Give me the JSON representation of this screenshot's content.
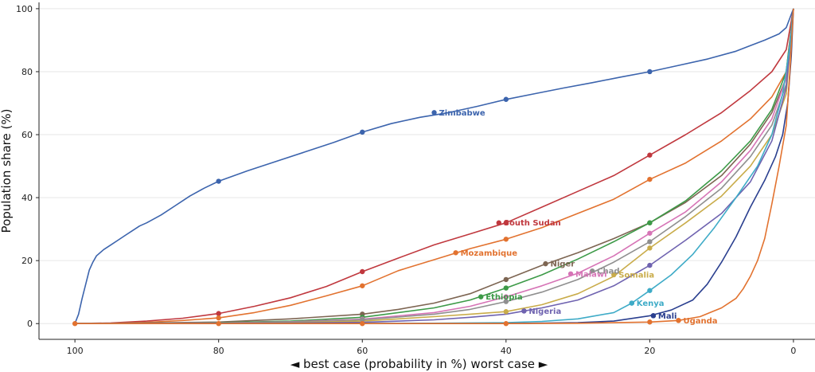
{
  "chart_data": {
    "type": "line",
    "xlabel": "◄ best case (probability in %) worst case ►",
    "ylabel": "Population share (%)",
    "xlim": [
      105,
      -3
    ],
    "ylim": [
      -5,
      102
    ],
    "xticks": [
      100,
      80,
      60,
      40,
      20,
      0
    ],
    "yticks": [
      0,
      20,
      40,
      60,
      80,
      100
    ],
    "grid": "horizontal",
    "series": [
      {
        "name": "Zimbabwe",
        "color": "#3c64ad",
        "label_point": [
          50,
          67
        ],
        "x": [
          100,
          99.5,
          99,
          98.5,
          98,
          97.5,
          97,
          96,
          95,
          94,
          93,
          92,
          91,
          90,
          88,
          86,
          84,
          82,
          80,
          76,
          72,
          68,
          64,
          60,
          56,
          52,
          48,
          44,
          40,
          36,
          32,
          28,
          24,
          20,
          16,
          12,
          8,
          6,
          4,
          2,
          1,
          0
        ],
        "y": [
          0,
          3,
          8,
          12.5,
          17,
          19.5,
          21.5,
          23.5,
          25,
          26.5,
          28,
          29.5,
          31,
          32,
          34.5,
          37.5,
          40.5,
          43,
          45.2,
          48.5,
          51.5,
          54.5,
          57.5,
          60.8,
          63.5,
          65.5,
          67,
          69,
          71.2,
          73,
          74.8,
          76.5,
          78.3,
          80,
          82,
          84,
          86.5,
          88.3,
          90,
          92,
          94,
          100
        ],
        "markers": [
          [
            80,
            45.2
          ],
          [
            60,
            60.8
          ],
          [
            40,
            71.2
          ],
          [
            20,
            80
          ]
        ]
      },
      {
        "name": "South Sudan",
        "color": "#c0383e",
        "label_point": [
          41,
          32
        ],
        "x": [
          100,
          95,
          90,
          85,
          80,
          75,
          70,
          65,
          60,
          55,
          50,
          45,
          40,
          35,
          30,
          25,
          20,
          15,
          10,
          6,
          3,
          1,
          0
        ],
        "y": [
          0,
          0.2,
          0.8,
          1.7,
          3.2,
          5.5,
          8.2,
          11.8,
          16.5,
          20.8,
          25,
          28.5,
          32,
          37,
          42,
          47,
          53.5,
          60,
          67,
          74,
          80,
          87,
          100
        ],
        "markers": [
          [
            80,
            3.2
          ],
          [
            60,
            16.5
          ],
          [
            40,
            32
          ],
          [
            20,
            53.5
          ]
        ]
      },
      {
        "name": "Mozambique",
        "color": "#e2722f",
        "label_point": [
          47,
          22.5
        ],
        "x": [
          100,
          95,
          90,
          85,
          80,
          75,
          70,
          65,
          60,
          55,
          50,
          45,
          40,
          35,
          30,
          25,
          20,
          15,
          10,
          6,
          3,
          1,
          0
        ],
        "y": [
          0,
          0.1,
          0.4,
          1,
          1.8,
          3.5,
          5.8,
          8.8,
          12,
          16.8,
          20.3,
          23.8,
          26.8,
          30.5,
          35,
          39.5,
          45.8,
          51,
          58,
          65,
          72,
          80,
          100
        ],
        "markers": [
          [
            80,
            1.8
          ],
          [
            60,
            12
          ],
          [
            40,
            26.8
          ],
          [
            20,
            45.8
          ]
        ]
      },
      {
        "name": "Niger",
        "color": "#7d6552",
        "label_point": [
          34.5,
          19
        ],
        "x": [
          100,
          90,
          80,
          70,
          60,
          55,
          50,
          45,
          40,
          35,
          30,
          25,
          20,
          15,
          10,
          6,
          3,
          1,
          0
        ],
        "y": [
          0,
          0.2,
          0.5,
          1.5,
          3,
          4.5,
          6.5,
          9.5,
          14,
          18.5,
          22.5,
          27,
          32,
          38.5,
          47,
          57,
          67,
          78,
          100
        ],
        "markers": [
          [
            60,
            3
          ],
          [
            40,
            14
          ],
          [
            20,
            32
          ]
        ]
      },
      {
        "name": "Ethiopia",
        "color": "#3c9a47",
        "label_point": [
          43.5,
          8.5
        ],
        "x": [
          100,
          90,
          80,
          70,
          60,
          50,
          45,
          40,
          35,
          30,
          25,
          20,
          15,
          10,
          6,
          3,
          1,
          0
        ],
        "y": [
          0,
          0.1,
          0.3,
          0.8,
          2,
          5,
          7.5,
          11.3,
          15.5,
          20.5,
          26,
          32,
          39,
          48.5,
          58,
          68,
          80,
          100
        ],
        "markers": [
          [
            60,
            2
          ],
          [
            40,
            11.3
          ],
          [
            20,
            32
          ]
        ]
      },
      {
        "name": "Malawi",
        "color": "#d674b6",
        "label_point": [
          31,
          15.8
        ],
        "x": [
          100,
          90,
          80,
          70,
          60,
          50,
          45,
          40,
          35,
          30,
          25,
          20,
          15,
          10,
          6,
          3,
          1,
          0
        ],
        "y": [
          0,
          0.1,
          0.2,
          0.6,
          1.4,
          3.5,
          5.5,
          8.5,
          12,
          16,
          21.5,
          28.7,
          35.5,
          45,
          55,
          65,
          78,
          100
        ],
        "markers": [
          [
            60,
            1.4
          ],
          [
            40,
            8.5
          ],
          [
            20,
            28.7
          ]
        ]
      },
      {
        "name": "Chad",
        "color": "#8f8f8f",
        "label_point": [
          28,
          16.7
        ],
        "x": [
          100,
          90,
          80,
          70,
          60,
          50,
          45,
          40,
          35,
          30,
          25,
          20,
          15,
          10,
          6,
          3,
          1,
          0
        ],
        "y": [
          0,
          0.1,
          0.2,
          0.5,
          1.2,
          3,
          4.5,
          7,
          10,
          14,
          19.5,
          26,
          34,
          43,
          53,
          63,
          76,
          100
        ],
        "markers": [
          [
            60,
            1.2
          ],
          [
            40,
            7
          ],
          [
            20,
            26
          ]
        ]
      },
      {
        "name": "Somalia",
        "color": "#c9ac4a",
        "label_point": [
          25,
          15.5
        ],
        "x": [
          100,
          90,
          80,
          70,
          60,
          50,
          45,
          40,
          35,
          30,
          25,
          20,
          15,
          10,
          6,
          3,
          1,
          0
        ],
        "y": [
          0,
          0,
          0.1,
          0.3,
          0.8,
          2.2,
          3,
          3.8,
          6,
          9.5,
          15,
          24,
          32,
          40.5,
          50,
          60,
          73,
          100
        ],
        "markers": [
          [
            40,
            3.8
          ],
          [
            20,
            24
          ]
        ]
      },
      {
        "name": "Nigeria",
        "color": "#6f63b0",
        "label_point": [
          37.5,
          4
        ],
        "x": [
          100,
          90,
          80,
          70,
          60,
          50,
          45,
          40,
          37.5,
          35,
          30,
          25,
          20,
          15,
          10,
          6,
          3,
          1,
          0
        ],
        "y": [
          0,
          0,
          0.1,
          0.2,
          0.4,
          1.2,
          2,
          3,
          4,
          5,
          7.5,
          12,
          18.5,
          26.5,
          35,
          45,
          58,
          75,
          100
        ],
        "markers": [
          [
            37.5,
            4
          ],
          [
            20,
            18.5
          ]
        ]
      },
      {
        "name": "Kenya",
        "color": "#3eabc7",
        "label_point": [
          22.5,
          6.5
        ],
        "x": [
          100,
          80,
          60,
          50,
          40,
          35,
          30,
          25,
          22.5,
          20,
          17,
          14,
          11,
          8,
          5,
          3,
          1.5,
          0.5,
          0
        ],
        "y": [
          0,
          0,
          0,
          0.1,
          0.3,
          0.7,
          1.5,
          3.5,
          6.5,
          10.5,
          15.5,
          22,
          30.5,
          40,
          50,
          60,
          73,
          88,
          100
        ],
        "markers": [
          [
            22.5,
            6.5
          ],
          [
            20,
            10.5
          ]
        ]
      },
      {
        "name": "Mali",
        "color": "#2a3f8f",
        "label_point": [
          19.5,
          2.5
        ],
        "x": [
          100,
          80,
          60,
          40,
          30,
          25,
          20,
          17,
          14,
          12,
          10,
          8,
          6,
          4,
          2.5,
          1.5,
          0.8,
          0.3,
          0
        ],
        "y": [
          0,
          0,
          0,
          0,
          0.3,
          0.8,
          2.5,
          4.3,
          7.5,
          12.5,
          19.5,
          27.5,
          37,
          45.5,
          53,
          60,
          70,
          85,
          100
        ],
        "markers": [
          [
            19.5,
            2.5
          ]
        ]
      },
      {
        "name": "Uganda",
        "color": "#e2722f",
        "label_point": [
          16,
          1
        ],
        "x": [
          100,
          80,
          60,
          40,
          30,
          20,
          16,
          13,
          10,
          8,
          7,
          6,
          5,
          4,
          3,
          2,
          1,
          0.5,
          0
        ],
        "y": [
          0,
          0,
          0,
          0,
          0.1,
          0.5,
          1,
          2.2,
          5,
          8,
          11,
          15,
          20,
          27,
          38,
          50,
          63,
          80,
          100
        ],
        "markers": [
          [
            80,
            0
          ],
          [
            60,
            0
          ],
          [
            40,
            0
          ],
          [
            20,
            0.5
          ],
          [
            16,
            1
          ]
        ]
      }
    ]
  }
}
